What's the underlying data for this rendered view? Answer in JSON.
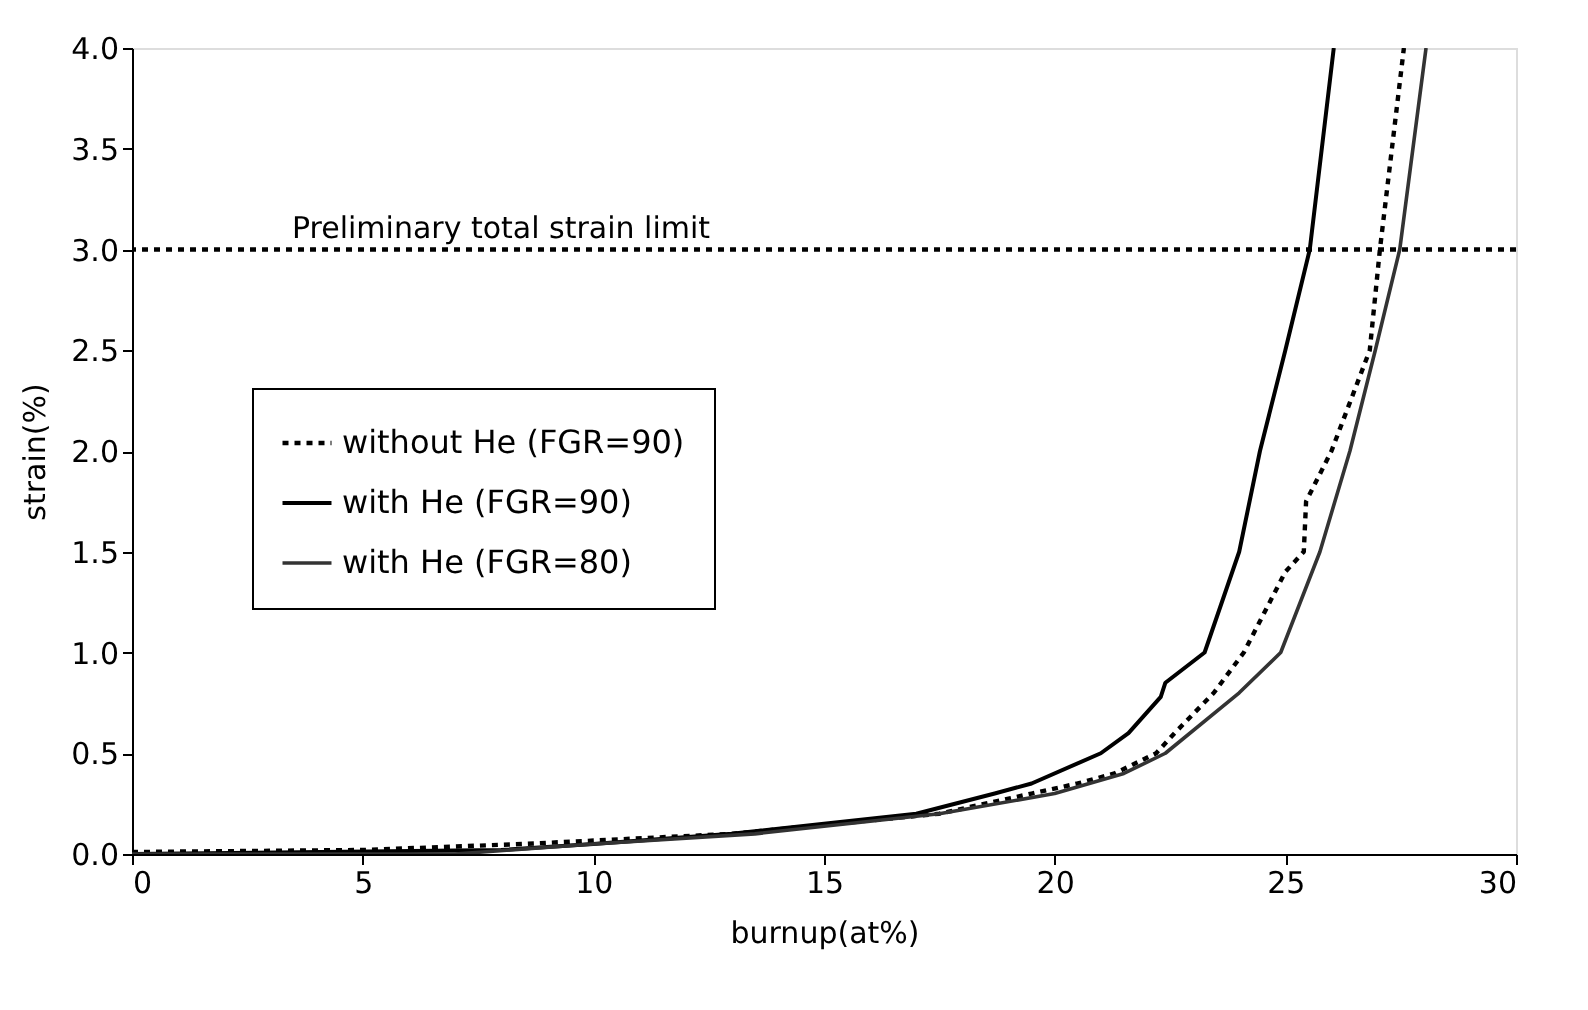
{
  "chart_data": {
    "type": "line",
    "xlabel": "burnup(at%)",
    "ylabel": "strain(%)",
    "xlim": [
      0,
      30
    ],
    "ylim": [
      0,
      4.0
    ],
    "xticks": [
      0,
      5,
      10,
      15,
      20,
      25,
      30
    ],
    "yticks": [
      {
        "value": 0,
        "label": "0.0"
      },
      {
        "value": 0.5,
        "label": "0.5"
      },
      {
        "value": 1,
        "label": "1.0"
      },
      {
        "value": 1.5,
        "label": "1.5"
      },
      {
        "value": 2,
        "label": "2.0"
      },
      {
        "value": 2.5,
        "label": "2.5"
      },
      {
        "value": 3,
        "label": "3.0"
      },
      {
        "value": 3.5,
        "label": "3.5"
      },
      {
        "value": 4,
        "label": "4.0"
      }
    ],
    "grid": false,
    "legend": "left",
    "marker": "none",
    "ref_lines": [
      {
        "axis": "y",
        "value": 3.0,
        "label": "Preliminary total strain limit",
        "color": "#000000",
        "line_style": "dotted"
      }
    ],
    "series": [
      {
        "name": "without He (FGR=90)",
        "color": "#000000",
        "line_style": "dotted",
        "x": [
          0,
          5,
          8.5,
          13,
          17.5,
          19.5,
          20.5,
          21.3,
          22.2,
          22.6,
          23.45,
          24.1,
          25.0,
          25.4,
          25.45,
          26.0,
          26.83,
          27.05,
          27.57
        ],
        "values": [
          0.01,
          0.02,
          0.05,
          0.1,
          0.2,
          0.3,
          0.35,
          0.4,
          0.5,
          0.6,
          0.8,
          1.0,
          1.4,
          1.5,
          1.75,
          2.0,
          2.5,
          3.0,
          4.0
        ]
      },
      {
        "name": "with He (FGR=90)",
        "color": "#000000",
        "line_style": "solid",
        "x": [
          0,
          8,
          10,
          13,
          15,
          17,
          18.7,
          19.5,
          21.0,
          21.6,
          22.3,
          22.4,
          23.25,
          24.0,
          24.45,
          25.0,
          25.53,
          26.05
        ],
        "values": [
          0,
          0.02,
          0.05,
          0.1,
          0.15,
          0.2,
          0.3,
          0.35,
          0.5,
          0.6,
          0.78,
          0.85,
          1.0,
          1.5,
          2.0,
          2.5,
          3.0,
          4.0
        ]
      },
      {
        "name": "with He (FGR=80)",
        "color": "#333333",
        "line_style": "solid",
        "x": [
          0,
          7,
          10,
          13.5,
          17.5,
          20,
          21.5,
          22.4,
          24.0,
          24.9,
          25.75,
          26.4,
          26.95,
          27.48,
          28.05
        ],
        "values": [
          0,
          0,
          0.05,
          0.1,
          0.2,
          0.3,
          0.4,
          0.5,
          0.8,
          1.0,
          1.5,
          2.0,
          2.5,
          3.0,
          4.0
        ]
      }
    ]
  }
}
